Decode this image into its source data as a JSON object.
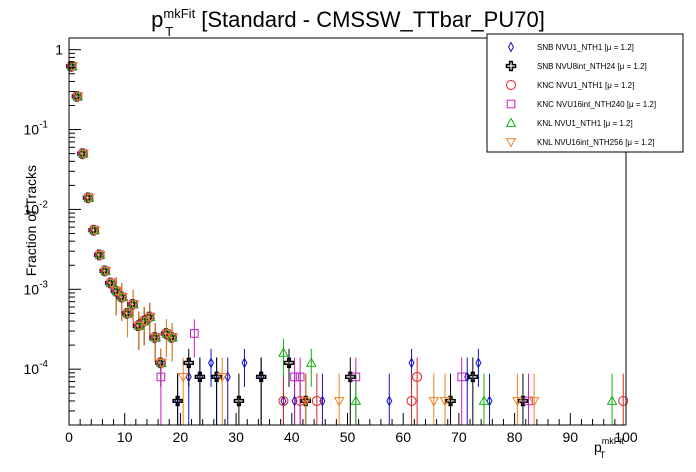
{
  "chart_data": {
    "type": "scatter",
    "title": {
      "var": "p",
      "sup": "mkFit",
      "sub": "T",
      "rest": " [Standard - CMSSW_TTbar_PU70]"
    },
    "xlabel": {
      "var": "p",
      "sup": "mkFit",
      "sub": "T"
    },
    "ylabel": "Fraction of Tracks",
    "xlim": [
      0,
      100
    ],
    "ylim": [
      2e-05,
      1.4
    ],
    "y_scale": "log",
    "x_ticks": [
      "0",
      "10",
      "20",
      "30",
      "40",
      "50",
      "60",
      "70",
      "80",
      "90",
      "100"
    ],
    "y_ticks": [
      {
        "value": 1,
        "base": "1",
        "exp": ""
      },
      {
        "value": 0.1,
        "base": "10",
        "exp": "-1"
      },
      {
        "value": 0.01,
        "base": "10",
        "exp": "-2"
      },
      {
        "value": 0.001,
        "base": "10",
        "exp": "-3"
      },
      {
        "value": 0.0001,
        "base": "10",
        "exp": "-4"
      }
    ],
    "grid": false,
    "legend_position": "top-right",
    "bulk_x": [
      0.5,
      1.5,
      2.5,
      3.5,
      4.5,
      5.5,
      6.5,
      7.5,
      8.5,
      9.5,
      10.5,
      11.5,
      12.5,
      13.5,
      14.5,
      15.5,
      16.5,
      17.5,
      18.5
    ],
    "bulk_y": [
      0.62,
      0.26,
      0.05,
      0.014,
      0.0055,
      0.0027,
      0.0017,
      0.0012,
      0.00095,
      0.0008,
      0.0005,
      0.00065,
      0.00035,
      0.0004,
      0.00045,
      0.00025,
      0.00012,
      0.00028,
      0.00025
    ],
    "series": [
      {
        "name": "SNB NVU1_NTH1",
        "mu": "[μ = 1.2]",
        "marker": "diamond",
        "color": "#1010c8",
        "tail": [
          [
            19.5,
            4e-05
          ],
          [
            21.5,
            8e-05
          ],
          [
            23.5,
            8e-05
          ],
          [
            25.5,
            0.00012
          ],
          [
            26.5,
            8e-05
          ],
          [
            28.5,
            8e-05
          ],
          [
            31.5,
            0.00012
          ],
          [
            34.5,
            8e-05
          ],
          [
            38.5,
            4e-05
          ],
          [
            40.5,
            4e-05
          ],
          [
            45.5,
            4e-05
          ],
          [
            57.5,
            4e-05
          ],
          [
            61.5,
            0.00012
          ],
          [
            71.5,
            8e-05
          ],
          [
            73.5,
            0.00012
          ],
          [
            75.5,
            4e-05
          ]
        ]
      },
      {
        "name": "SNB NVU8int_NTH24",
        "mu": "[μ = 1.2]",
        "marker": "cross",
        "color": "#000000",
        "tail": [
          [
            19.5,
            4e-05
          ],
          [
            21.5,
            0.00012
          ],
          [
            23.5,
            8e-05
          ],
          [
            26.5,
            8e-05
          ],
          [
            30.5,
            4e-05
          ],
          [
            34.5,
            8e-05
          ],
          [
            39.5,
            0.00012
          ],
          [
            42.5,
            4e-05
          ],
          [
            50.5,
            8e-05
          ],
          [
            68.5,
            4e-05
          ],
          [
            72.5,
            8e-05
          ],
          [
            81.5,
            4e-05
          ]
        ]
      },
      {
        "name": "KNC NVU1_NTH1",
        "mu": "[μ = 1.2]",
        "marker": "circle",
        "color": "#e02020",
        "tail": [
          [
            38.5,
            4e-05
          ],
          [
            41.5,
            4e-05
          ],
          [
            44.5,
            4e-05
          ],
          [
            61.5,
            4e-05
          ],
          [
            62.5,
            8e-05
          ],
          [
            99.5,
            4e-05
          ]
        ]
      },
      {
        "name": "KNC NVU16int_NTH240",
        "mu": "[μ = 1.2]",
        "marker": "square",
        "color": "#c020c0",
        "tail": [
          [
            16.5,
            8e-05
          ],
          [
            22.5,
            0.00028
          ],
          [
            40.5,
            8e-05
          ],
          [
            41.5,
            8e-05
          ],
          [
            51.5,
            8e-05
          ],
          [
            70.5,
            8e-05
          ],
          [
            82.5,
            4e-05
          ]
        ]
      },
      {
        "name": "KNL NVU1_NTH1",
        "mu": "[μ = 1.2]",
        "marker": "triangle-up",
        "color": "#10b010",
        "tail": [
          [
            38.5,
            0.00016
          ],
          [
            43.5,
            0.00012
          ],
          [
            51.5,
            4e-05
          ],
          [
            74.5,
            4e-05
          ],
          [
            97.5,
            4e-05
          ]
        ]
      },
      {
        "name": "KNL NVU16int_NTH256",
        "mu": "[μ = 1.2]",
        "marker": "triangle-down",
        "color": "#f08020",
        "tail": [
          [
            20.5,
            8e-05
          ],
          [
            27.5,
            8e-05
          ],
          [
            42.5,
            4e-05
          ],
          [
            48.5,
            4e-05
          ],
          [
            65.5,
            4e-05
          ],
          [
            67.5,
            4e-05
          ],
          [
            80.5,
            4e-05
          ],
          [
            83.5,
            4e-05
          ]
        ]
      }
    ]
  }
}
